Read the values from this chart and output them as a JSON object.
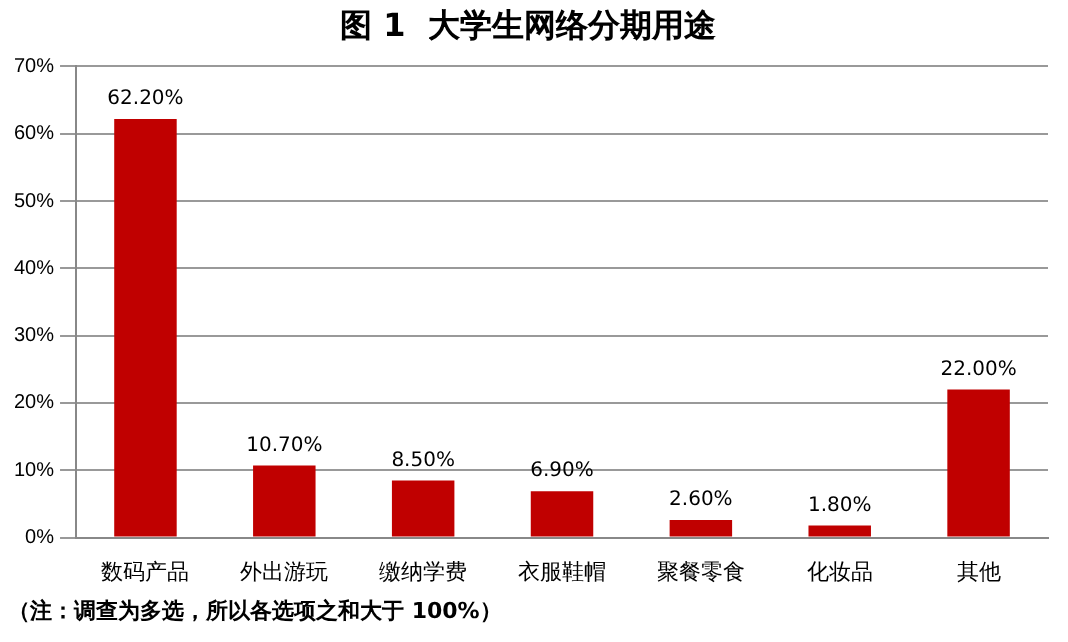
{
  "chart_data": {
    "type": "bar",
    "title": "图 1  大学生网络分期用途",
    "categories": [
      "数码产品",
      "外出游玩",
      "缴纳学费",
      "衣服鞋帽",
      "聚餐零食",
      "化妆品",
      "其他"
    ],
    "values": [
      62.2,
      10.7,
      8.5,
      6.9,
      2.6,
      1.8,
      22.0
    ],
    "value_labels": [
      "62.20%",
      "10.70%",
      "8.50%",
      "6.90%",
      "2.60%",
      "1.80%",
      "22.00%"
    ],
    "color": "#c00000",
    "ylim": [
      0,
      70
    ],
    "yticks": [
      {
        "value": 0,
        "label": "0%"
      },
      {
        "value": 10,
        "label": "10%"
      },
      {
        "value": 20,
        "label": "20%"
      },
      {
        "value": 30,
        "label": "30%"
      },
      {
        "value": 40,
        "label": "40%"
      },
      {
        "value": 50,
        "label": "50%"
      },
      {
        "value": 60,
        "label": "60%"
      },
      {
        "value": 70,
        "label": "70%"
      }
    ],
    "grid": "y",
    "annotations": [
      "（注：调查为多选，所以各选项之和大于 100%）"
    ]
  }
}
